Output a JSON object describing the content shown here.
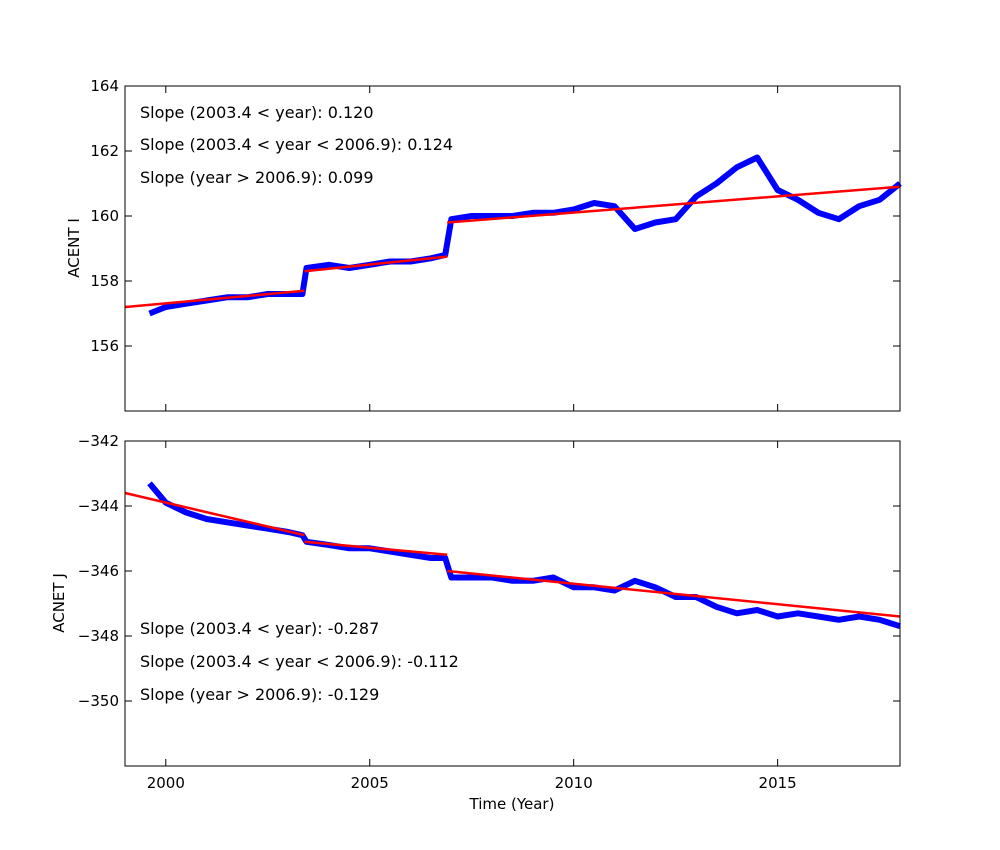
{
  "colors": {
    "data": "#0000ff",
    "fit": "#ff0000",
    "frame": "#000000"
  },
  "chart_data": [
    {
      "type": "line",
      "ylabel": "ACENT I",
      "xlim": [
        1999,
        2018
      ],
      "ylim": [
        154,
        164
      ],
      "yticks": [
        "156",
        "158",
        "160",
        "162",
        "164"
      ],
      "xticks": [],
      "annotations": [
        "Slope (2003.4 < year):  0.120",
        "Slope (2003.4 <  year < 2006.9): 0.124",
        "Slope (year > 2006.9):  0.099"
      ],
      "series": [
        {
          "values": [
            [
              1999.6,
              157.0
            ],
            [
              2000.0,
              157.2
            ],
            [
              2000.5,
              157.3
            ],
            [
              2001.0,
              157.4
            ],
            [
              2001.5,
              157.5
            ],
            [
              2002.0,
              157.5
            ],
            [
              2002.5,
              157.6
            ],
            [
              2003.0,
              157.6
            ],
            [
              2003.35,
              157.6
            ],
            [
              2003.45,
              158.4
            ],
            [
              2004.0,
              158.5
            ],
            [
              2004.5,
              158.4
            ],
            [
              2005.0,
              158.5
            ],
            [
              2005.5,
              158.6
            ],
            [
              2006.0,
              158.6
            ],
            [
              2006.5,
              158.7
            ],
            [
              2006.85,
              158.8
            ],
            [
              2007.0,
              159.9
            ],
            [
              2007.5,
              160.0
            ],
            [
              2008.0,
              160.0
            ],
            [
              2008.5,
              160.0
            ],
            [
              2009.0,
              160.1
            ],
            [
              2009.5,
              160.1
            ],
            [
              2010.0,
              160.2
            ],
            [
              2010.5,
              160.4
            ],
            [
              2011.0,
              160.3
            ],
            [
              2011.5,
              159.6
            ],
            [
              2012.0,
              159.8
            ],
            [
              2012.5,
              159.9
            ],
            [
              2013.0,
              160.6
            ],
            [
              2013.5,
              161.0
            ],
            [
              2014.0,
              161.5
            ],
            [
              2014.5,
              161.8
            ],
            [
              2015.0,
              160.8
            ],
            [
              2015.5,
              160.5
            ],
            [
              2016.0,
              160.1
            ],
            [
              2016.5,
              159.9
            ],
            [
              2017.0,
              160.3
            ],
            [
              2017.5,
              160.5
            ],
            [
              2018.0,
              161.0
            ]
          ]
        },
        {
          "values": [
            [
              1999.0,
              157.2
            ],
            [
              2003.4,
              157.7
            ]
          ]
        },
        {
          "values": [
            [
              2003.4,
              158.3
            ],
            [
              2006.9,
              158.75
            ]
          ]
        },
        {
          "values": [
            [
              2006.9,
              159.8
            ],
            [
              2018.0,
              160.9
            ]
          ]
        }
      ]
    },
    {
      "type": "line",
      "ylabel": "ACNET J",
      "xlabel": "Time (Year)",
      "xlim": [
        1999,
        2018
      ],
      "ylim": [
        -352,
        -342
      ],
      "yticks": [
        "−350",
        "−348",
        "−346",
        "−344",
        "−342"
      ],
      "xticks": [
        "2000",
        "2005",
        "2010",
        "2015"
      ],
      "annotations": [
        "Slope (2003.4 < year):  -0.287",
        "Slope (2003.4 <  year < 2006.9): -0.112",
        "Slope (year > 2006.9):  -0.129"
      ],
      "series": [
        {
          "values": [
            [
              1999.6,
              -343.3
            ],
            [
              2000.0,
              -343.9
            ],
            [
              2000.5,
              -344.2
            ],
            [
              2001.0,
              -344.4
            ],
            [
              2001.5,
              -344.5
            ],
            [
              2002.0,
              -344.6
            ],
            [
              2002.5,
              -344.7
            ],
            [
              2003.0,
              -344.8
            ],
            [
              2003.35,
              -344.9
            ],
            [
              2003.45,
              -345.1
            ],
            [
              2004.0,
              -345.2
            ],
            [
              2004.5,
              -345.3
            ],
            [
              2005.0,
              -345.3
            ],
            [
              2005.5,
              -345.4
            ],
            [
              2006.0,
              -345.5
            ],
            [
              2006.5,
              -345.6
            ],
            [
              2006.85,
              -345.6
            ],
            [
              2007.0,
              -346.2
            ],
            [
              2007.5,
              -346.2
            ],
            [
              2008.0,
              -346.2
            ],
            [
              2008.5,
              -346.3
            ],
            [
              2009.0,
              -346.3
            ],
            [
              2009.5,
              -346.2
            ],
            [
              2010.0,
              -346.5
            ],
            [
              2010.5,
              -346.5
            ],
            [
              2011.0,
              -346.6
            ],
            [
              2011.5,
              -346.3
            ],
            [
              2012.0,
              -346.5
            ],
            [
              2012.5,
              -346.8
            ],
            [
              2013.0,
              -346.8
            ],
            [
              2013.5,
              -347.1
            ],
            [
              2014.0,
              -347.3
            ],
            [
              2014.5,
              -347.2
            ],
            [
              2015.0,
              -347.4
            ],
            [
              2015.5,
              -347.3
            ],
            [
              2016.0,
              -347.4
            ],
            [
              2016.5,
              -347.5
            ],
            [
              2017.0,
              -347.4
            ],
            [
              2017.5,
              -347.5
            ],
            [
              2018.0,
              -347.7
            ]
          ]
        },
        {
          "values": [
            [
              1999.0,
              -343.6
            ],
            [
              2003.4,
              -344.9
            ]
          ]
        },
        {
          "values": [
            [
              2003.4,
              -345.1
            ],
            [
              2006.9,
              -345.5
            ]
          ]
        },
        {
          "values": [
            [
              2006.9,
              -346.0
            ],
            [
              2018.0,
              -347.4
            ]
          ]
        }
      ]
    }
  ]
}
